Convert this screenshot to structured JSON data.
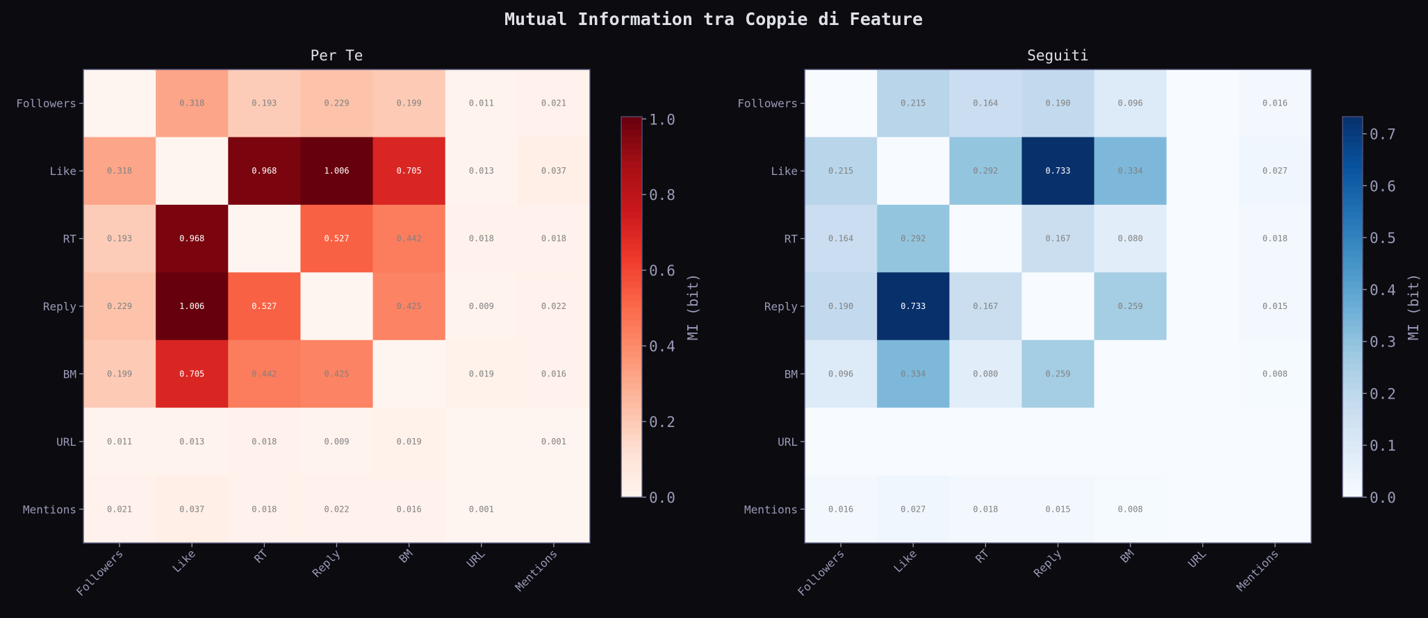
{
  "title": "Mutual Information tra Coppie di Feature",
  "chart_data": [
    {
      "type": "heatmap",
      "title": "Per Te",
      "colormap": "Reds",
      "categories": [
        "Followers",
        "Like",
        "RT",
        "Reply",
        "BM",
        "URL",
        "Mentions"
      ],
      "values": [
        [
          null,
          0.318,
          0.193,
          0.229,
          0.199,
          0.011,
          0.021
        ],
        [
          0.318,
          null,
          0.968,
          1.006,
          0.705,
          0.013,
          0.037
        ],
        [
          0.193,
          0.968,
          null,
          0.527,
          0.442,
          0.018,
          0.018
        ],
        [
          0.229,
          1.006,
          0.527,
          null,
          0.425,
          0.009,
          0.022
        ],
        [
          0.199,
          0.705,
          0.442,
          0.425,
          null,
          0.019,
          0.016
        ],
        [
          0.011,
          0.013,
          0.018,
          0.009,
          0.019,
          null,
          0.001
        ],
        [
          0.021,
          0.037,
          0.018,
          0.022,
          0.016,
          0.001,
          null
        ]
      ],
      "colorbar": {
        "label": "MI (bit)",
        "range": [
          0,
          1.006
        ],
        "ticks": [
          "0.0",
          "0.2",
          "0.4",
          "0.6",
          "0.8",
          "1.0"
        ]
      }
    },
    {
      "type": "heatmap",
      "title": "Seguiti",
      "colormap": "Blues",
      "categories": [
        "Followers",
        "Like",
        "RT",
        "Reply",
        "BM",
        "URL",
        "Mentions"
      ],
      "values": [
        [
          null,
          0.215,
          0.164,
          0.19,
          0.096,
          null,
          0.016
        ],
        [
          0.215,
          null,
          0.292,
          0.733,
          0.334,
          null,
          0.027
        ],
        [
          0.164,
          0.292,
          null,
          0.167,
          0.08,
          null,
          0.018
        ],
        [
          0.19,
          0.733,
          0.167,
          null,
          0.259,
          null,
          0.015
        ],
        [
          0.096,
          0.334,
          0.08,
          0.259,
          null,
          null,
          0.008
        ],
        [
          null,
          null,
          null,
          null,
          null,
          null,
          null
        ],
        [
          0.016,
          0.027,
          0.018,
          0.015,
          0.008,
          null,
          null
        ]
      ],
      "colorbar": {
        "label": "MI (bit)",
        "range": [
          0,
          0.733
        ],
        "ticks": [
          "0.0",
          "0.1",
          "0.2",
          "0.3",
          "0.4",
          "0.5",
          "0.6",
          "0.7"
        ]
      }
    }
  ],
  "colors": {
    "background": "#0b0b10",
    "text": "#e0e0e8",
    "tick_label": "#9a9ab8",
    "spine": "#55557a",
    "cell_text_dark": "#808080",
    "cell_text_light": "#ffffff"
  }
}
